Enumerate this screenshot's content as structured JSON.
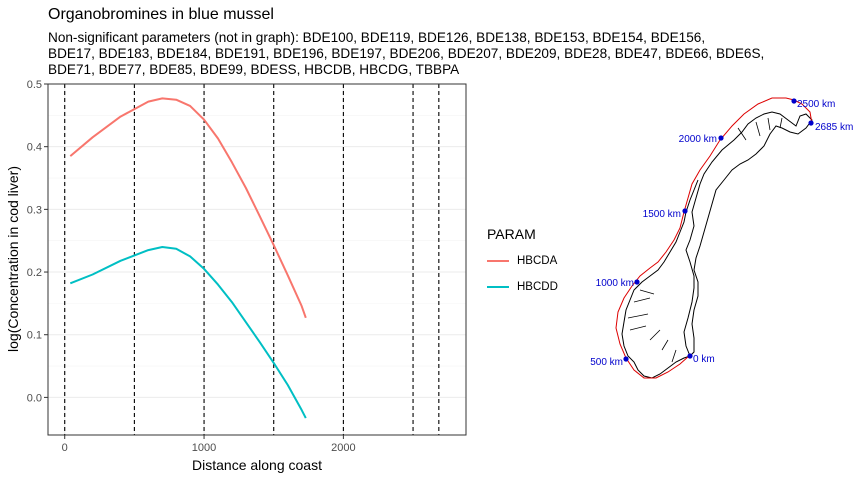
{
  "chart_data": {
    "type": "line",
    "title": "Organobromines in blue mussel",
    "subtitle_lines": [
      "Non-significant parameters (not in graph): BDE100, BDE119, BDE126, BDE138, BDE153, BDE154, BDE156,",
      "BDE17, BDE183, BDE184, BDE191, BDE196, BDE197, BDE206, BDE207, BDE209, BDE28, BDE47, BDE66, BDE6S,",
      "BDE71, BDE77, BDE85, BDE99, BDESS, HBCDB, HBCDG, TBBPA"
    ],
    "xlabel": "Distance along coast",
    "ylabel": "log(Concentration in cod liver)",
    "xlim": [
      -120,
      2880
    ],
    "ylim": [
      -0.06,
      0.5
    ],
    "xticks": [
      0,
      1000,
      2000
    ],
    "yticks": [
      0.0,
      0.1,
      0.2,
      0.3,
      0.4,
      0.5
    ],
    "ytick_labels": [
      "0.0",
      "0.1",
      "0.2",
      "0.3",
      "0.4",
      "0.5"
    ],
    "vlines": [
      0,
      500,
      1000,
      1500,
      2000,
      2500,
      2685
    ],
    "grid": true,
    "legend": {
      "title": "PARAM",
      "position": "right"
    },
    "series": [
      {
        "name": "HBCDA",
        "color": "#F8766D",
        "x": [
          40,
          200,
          400,
          600,
          700,
          800,
          900,
          1000,
          1100,
          1200,
          1300,
          1400,
          1500,
          1600,
          1700,
          1730
        ],
        "y": [
          0.385,
          0.415,
          0.448,
          0.472,
          0.477,
          0.475,
          0.465,
          0.443,
          0.413,
          0.375,
          0.334,
          0.289,
          0.243,
          0.195,
          0.146,
          0.127
        ]
      },
      {
        "name": "HBCDD",
        "color": "#00BFC4",
        "x": [
          40,
          200,
          400,
          600,
          700,
          800,
          900,
          1000,
          1100,
          1200,
          1300,
          1400,
          1500,
          1600,
          1700,
          1730
        ],
        "y": [
          0.182,
          0.196,
          0.218,
          0.235,
          0.24,
          0.237,
          0.225,
          0.205,
          0.18,
          0.152,
          0.12,
          0.088,
          0.055,
          0.02,
          -0.02,
          -0.033
        ]
      }
    ]
  },
  "map": {
    "markers": [
      {
        "label": "0 km"
      },
      {
        "label": "500 km"
      },
      {
        "label": "1000 km"
      },
      {
        "label": "1500 km"
      },
      {
        "label": "2000 km"
      },
      {
        "label": "2500 km"
      },
      {
        "label": "2685 km"
      }
    ],
    "marker_color": "#0000CC",
    "route_color": "#DD0000"
  }
}
